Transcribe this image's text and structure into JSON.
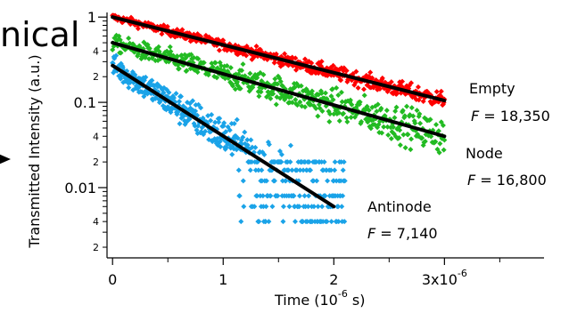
{
  "overlay_text": "nical",
  "chart_data": {
    "type": "scatter",
    "title": "",
    "xlabel": "Time (10",
    "xlabel_exp": "-6",
    "xlabel_unit": " s)",
    "ylabel": "Transmitted Intensity (a.u.)",
    "x_scale": "linear",
    "y_scale": "log",
    "xlim": [
      -5e-08,
      3.9e-06
    ],
    "ylim": [
      0.0015,
      1.08
    ],
    "x_ticks": [
      {
        "value": 0,
        "label": "0"
      },
      {
        "value": 1e-06,
        "label": "1"
      },
      {
        "value": 2e-06,
        "label": "2"
      },
      {
        "value": 3e-06,
        "label": "3x10",
        "exp": "-6"
      }
    ],
    "y_major_ticks": [
      {
        "value": 1,
        "label": "1"
      },
      {
        "value": 0.1,
        "label": "0.1"
      },
      {
        "value": 0.01,
        "label": "0.01"
      }
    ],
    "y_minor_labeled": [
      {
        "value": 0.4,
        "label": "4"
      },
      {
        "value": 0.2,
        "label": "2"
      },
      {
        "value": 0.04,
        "label": "4"
      },
      {
        "value": 0.02,
        "label": "2"
      },
      {
        "value": 0.004,
        "label": "4"
      },
      {
        "value": 0.002,
        "label": "2"
      }
    ],
    "grid": false,
    "series": [
      {
        "name": "Empty",
        "finesse_label": "F",
        "finesse_value": " = 18,350",
        "color": "#ff0000",
        "marker": "diamond",
        "fit_start": [
          0,
          1.0
        ],
        "fit_end": [
          3e-06,
          0.105
        ],
        "scatter_range": [
          0,
          3e-06
        ],
        "scatter_spread": 0.08,
        "floor": null
      },
      {
        "name": "Node",
        "finesse_label": "F",
        "finesse_value": " = 16,800",
        "color": "#22bb22",
        "marker": "diamond",
        "fit_start": [
          0,
          0.5
        ],
        "fit_end": [
          3e-06,
          0.04
        ],
        "scatter_range": [
          0,
          3e-06
        ],
        "scatter_spread": 0.18,
        "floor": null
      },
      {
        "name": "Antinode",
        "finesse_label": "F",
        "finesse_value": " = 7,140",
        "color": "#1aa3e8",
        "marker": "diamond",
        "fit_start": [
          0,
          0.27
        ],
        "fit_end": [
          2e-06,
          0.006
        ],
        "scatter_range": [
          0,
          2.1e-06
        ],
        "scatter_spread": 0.25,
        "floor": 0.004
      }
    ],
    "fit_color": "#000000"
  }
}
